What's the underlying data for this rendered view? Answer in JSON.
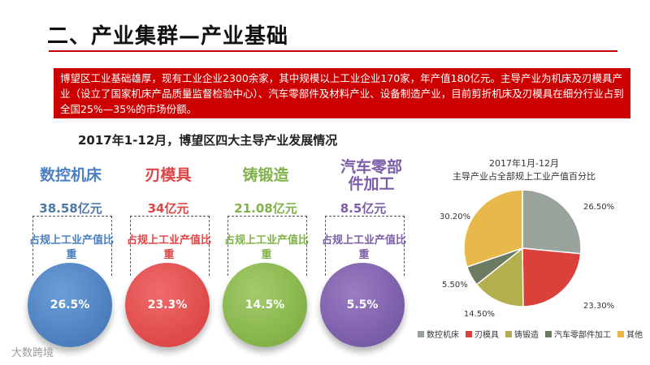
{
  "header": {
    "title": "二、产业集群—产业基础",
    "intro": "博望区工业基础雄厚，现有工业企业2300余家，其中规模以上工业企业170家，年产值180亿元。主导产业为机床及刃模具产业（设立了国家机床产品质量监督检验中心）、汽车零部件及材料产业、设备制造产业，目前剪折机床及刃模具在细分行业占到全国25%—35%的市场份额。"
  },
  "subtitle": "2017年1-12月，博望区四大主导产业发展情况",
  "cards": [
    {
      "name": "数控机床",
      "value": "38.58亿元",
      "label": "占规上工业产值比重",
      "percent": "26.5%"
    },
    {
      "name": "刃模具",
      "value": "34亿元",
      "label": "占规上工业产值比重",
      "percent": "23.3%"
    },
    {
      "name": "铸锻造",
      "value": "21.08亿元",
      "label": "占规上工业产值比重",
      "percent": "14.5%"
    },
    {
      "name": "汽车零部件加工",
      "value": "8.5亿元",
      "label": "占规上工业产值比重",
      "percent": "5.5%"
    }
  ],
  "colors": {
    "red_banner": "#cc0000",
    "blue": "#4a7fc1",
    "red": "#e04545",
    "green": "#82b14a",
    "purple": "#7c5ea8"
  },
  "chart_data": {
    "type": "pie",
    "title": "2017年1月-12月",
    "subtitle": "主导产业占全部规上工业产值百分比",
    "categories": [
      "数控机床",
      "刃模具",
      "铸锻造",
      "汽车零部件加工",
      "其他"
    ],
    "values": [
      26.5,
      23.3,
      14.5,
      5.5,
      30.2
    ],
    "labels": [
      "26.50%",
      "23.30%",
      "14.50%",
      "5.50%",
      "30.20%"
    ],
    "colors": [
      "#9aa39b",
      "#d9413a",
      "#b4b04f",
      "#6b7a60",
      "#e8b84a"
    ],
    "legend_position": "bottom"
  },
  "watermark": "大数跨境"
}
